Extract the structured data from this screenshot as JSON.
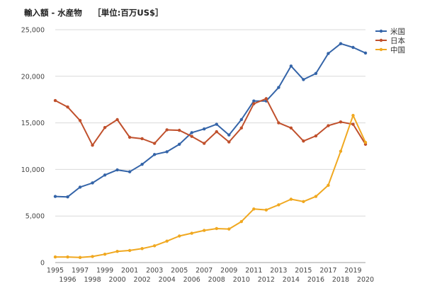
{
  "chart_data": {
    "type": "line",
    "title": "輸入額 - 水産物　 ［単位:百万US$］",
    "xlabel": "",
    "ylabel": "",
    "x": [
      1995,
      1996,
      1997,
      1998,
      1999,
      2000,
      2001,
      2002,
      2003,
      2004,
      2005,
      2006,
      2007,
      2008,
      2009,
      2010,
      2011,
      2012,
      2013,
      2014,
      2015,
      2016,
      2017,
      2018,
      2019,
      2020
    ],
    "ylim": [
      0,
      25000
    ],
    "y_ticks": [
      0,
      5000,
      10000,
      15000,
      20000,
      25000
    ],
    "y_tick_labels": [
      "0",
      "5,000",
      "10,000",
      "15,000",
      "20,000",
      "25,000"
    ],
    "x_tick_labels_top": [
      "1995",
      "1997",
      "1999",
      "2001",
      "2003",
      "2005",
      "2007",
      "2009",
      "2011",
      "2013",
      "2015",
      "2017",
      "2019"
    ],
    "x_tick_labels_bottom": [
      "1996",
      "1998",
      "2000",
      "2002",
      "2004",
      "2006",
      "2008",
      "2010",
      "2012",
      "2014",
      "2016",
      "2018",
      "2020"
    ],
    "grid": "horizontal",
    "legend_position": "right-top",
    "series": [
      {
        "name": "米国",
        "color": "#3464a8",
        "values": [
          7100,
          7050,
          8100,
          8550,
          9400,
          9950,
          9750,
          10550,
          11600,
          11900,
          12700,
          13950,
          14350,
          14850,
          13700,
          15350,
          17350,
          17350,
          18800,
          21100,
          19650,
          20300,
          22450,
          23500,
          23100,
          22500
        ]
      },
      {
        "name": "日本",
        "color": "#c0502c",
        "values": [
          17400,
          16700,
          15250,
          12600,
          14500,
          15350,
          13450,
          13300,
          12800,
          14250,
          14200,
          13550,
          12800,
          14050,
          12950,
          14450,
          17050,
          17600,
          15000,
          14450,
          13050,
          13600,
          14700,
          15100,
          14850,
          12700
        ]
      },
      {
        "name": "中国",
        "color": "#f0a820",
        "values": [
          600,
          600,
          550,
          650,
          900,
          1200,
          1300,
          1500,
          1800,
          2300,
          2850,
          3150,
          3450,
          3650,
          3600,
          4400,
          5750,
          5650,
          6200,
          6800,
          6550,
          7100,
          8300,
          11950,
          15800,
          12900
        ]
      }
    ]
  }
}
